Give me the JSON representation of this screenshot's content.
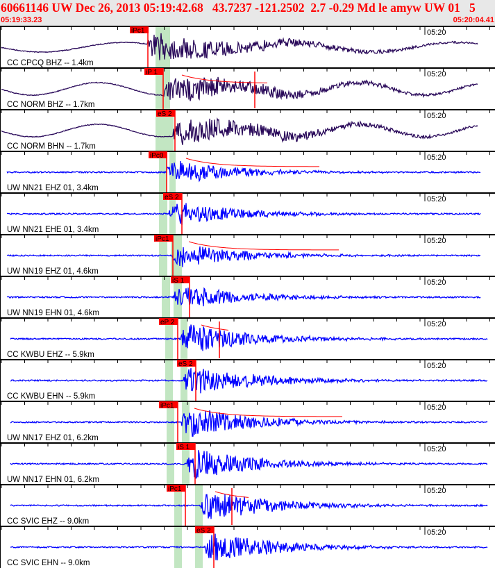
{
  "header": {
    "title": "60661146 UW Dec 26, 2013 05:19:42.68   43.7237 -121.2502  2.7 -0.29 Md le amyw UW 01   5",
    "start_time": "05:19:33.23",
    "end_time": "05:20:04.41"
  },
  "minute_mark": "05:20",
  "colors": {
    "pick": "#ff0000",
    "band": "#c2e6c2",
    "cc_trace": "#2a0a5a",
    "uw_trace": "#0000ff"
  },
  "traces": [
    {
      "label": "CC CPCQ BHZ -- 1.4km",
      "pick": "iPc1"
    },
    {
      "label": "CC NORM BHZ -- 1.7km",
      "pick": "iP 1"
    },
    {
      "label": "CC NORM BHN -- 1.7km",
      "pick": "eS 2"
    },
    {
      "label": "UW NN21 EHZ 01, 3.4km",
      "pick": "iPc0"
    },
    {
      "label": "UW NN21 EHE 01, 3.4km",
      "pick": "eS 2"
    },
    {
      "label": "UW NN19 EHZ 01, 4.6km",
      "pick": "iPc1"
    },
    {
      "label": "UW NN19 EHN 01, 4.6km",
      "pick": "iS 1"
    },
    {
      "label": "CC KWBU EHZ -- 5.9km",
      "pick": "eP 2"
    },
    {
      "label": "CC KWBU EHN -- 5.9km",
      "pick": "eS 2"
    },
    {
      "label": "UW NN17 EHZ 01, 6.2km",
      "pick": "iPc1"
    },
    {
      "label": "UW NN17 EHN 01, 6.2km",
      "pick": "iS 1"
    },
    {
      "label": "CC SVIC EHZ -- 9.0km",
      "pick": "iPc1"
    },
    {
      "label": "CC SVIC EHN -- 9.0km",
      "pick": "eS 2"
    }
  ]
}
